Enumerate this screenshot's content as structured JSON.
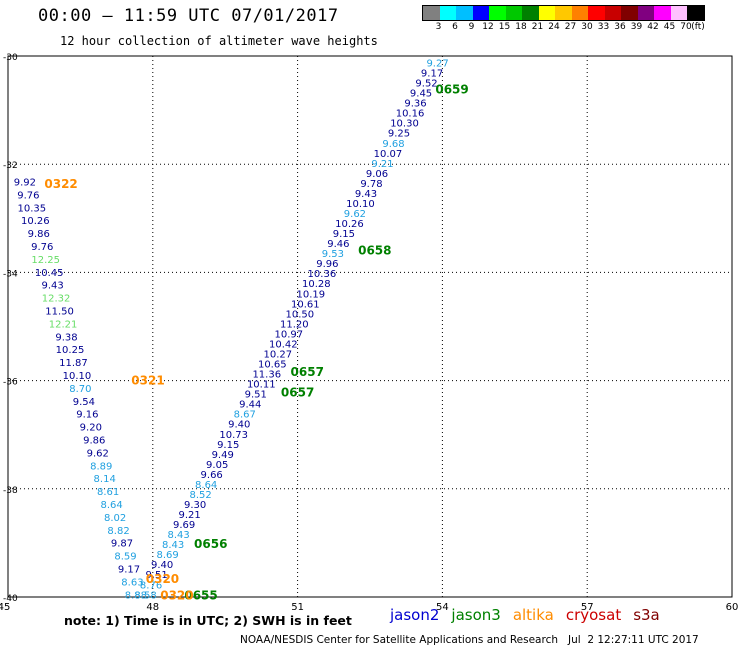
{
  "title": "00:00 – 11:59 UTC 07/01/2017",
  "subtitle": "12 hour collection of altimeter wave heights",
  "color_scale": {
    "unit_label": "(ft)",
    "labels": [
      "3",
      "6",
      "9",
      "12",
      "15",
      "18",
      "21",
      "24",
      "27",
      "30",
      "33",
      "36",
      "39",
      "42",
      "45",
      "70"
    ],
    "colors": [
      "#808080",
      "#00ffff",
      "#00bfff",
      "#0000ff",
      "#00ff00",
      "#00c800",
      "#008000",
      "#ffff00",
      "#ffc800",
      "#ff8000",
      "#ff0000",
      "#c80000",
      "#800000",
      "#800080",
      "#ff00ff",
      "#ffc0ff",
      "#000000"
    ]
  },
  "axes": {
    "lon_ticks": [
      "45",
      "48",
      "51",
      "54",
      "57",
      "60"
    ],
    "lat_ticks": [
      "-30",
      "-32",
      "-34",
      "-36",
      "-38",
      "-40"
    ],
    "lon_range": [
      45,
      60
    ],
    "lat_range": [
      -40,
      -30
    ]
  },
  "satellite_colors": {
    "jason2": "#000090",
    "jason3": "#008000",
    "altika": "#ff8c00",
    "cryosat": "#cc0000",
    "s3a": "#800000",
    "light_blue": "#20a0e0",
    "light_green": "#66dd66"
  },
  "tracks": [
    {
      "name": "west-track",
      "labels": [
        {
          "t": "9.92",
          "c": "jason2"
        },
        {
          "t": "9.76",
          "c": "jason2"
        },
        {
          "t": "10.35",
          "c": "jason2"
        },
        {
          "t": "10.26",
          "c": "jason2"
        },
        {
          "t": "9.86",
          "c": "jason2"
        },
        {
          "t": "9.76",
          "c": "jason2"
        },
        {
          "t": "12.25",
          "c": "light_green"
        },
        {
          "t": "10.45",
          "c": "jason2"
        },
        {
          "t": "9.43",
          "c": "jason2"
        },
        {
          "t": "12.32",
          "c": "light_green"
        },
        {
          "t": "11.50",
          "c": "jason2"
        },
        {
          "t": "12.21",
          "c": "light_green"
        },
        {
          "t": "9.38",
          "c": "jason2"
        },
        {
          "t": "10.25",
          "c": "jason2"
        },
        {
          "t": "11.87",
          "c": "jason2"
        },
        {
          "t": "10.10",
          "c": "jason2"
        },
        {
          "t": "8.70",
          "c": "light_blue"
        },
        {
          "t": "9.54",
          "c": "jason2"
        },
        {
          "t": "9.16",
          "c": "jason2"
        },
        {
          "t": "9.20",
          "c": "jason2"
        },
        {
          "t": "9.86",
          "c": "jason2"
        },
        {
          "t": "9.62",
          "c": "jason2"
        },
        {
          "t": "8.89",
          "c": "light_blue"
        },
        {
          "t": "8.14",
          "c": "light_blue"
        },
        {
          "t": "8.61",
          "c": "light_blue"
        },
        {
          "t": "8.64",
          "c": "light_blue"
        },
        {
          "t": "8.02",
          "c": "light_blue"
        },
        {
          "t": "8.82",
          "c": "light_blue"
        },
        {
          "t": "9.87",
          "c": "jason2"
        },
        {
          "t": "8.59",
          "c": "light_blue"
        },
        {
          "t": "9.17",
          "c": "jason2"
        },
        {
          "t": "8.63",
          "c": "light_blue"
        },
        {
          "t": "8.88",
          "c": "light_blue"
        }
      ]
    },
    {
      "name": "east-track",
      "labels": [
        {
          "t": "9.27",
          "c": "light_blue"
        },
        {
          "t": "9.17",
          "c": "jason2"
        },
        {
          "t": "9.52",
          "c": "jason2"
        },
        {
          "t": "9.45",
          "c": "jason2"
        },
        {
          "t": "9.36",
          "c": "jason2"
        },
        {
          "t": "10.16",
          "c": "jason2"
        },
        {
          "t": "10.30",
          "c": "jason2"
        },
        {
          "t": "9.25",
          "c": "jason2"
        },
        {
          "t": "9.68",
          "c": "light_blue"
        },
        {
          "t": "10.07",
          "c": "jason2"
        },
        {
          "t": "9.21",
          "c": "light_blue"
        },
        {
          "t": "9.06",
          "c": "jason2"
        },
        {
          "t": "9.78",
          "c": "jason2"
        },
        {
          "t": "9.43",
          "c": "jason2"
        },
        {
          "t": "10.10",
          "c": "jason2"
        },
        {
          "t": "9.62",
          "c": "light_blue"
        },
        {
          "t": "10.26",
          "c": "jason2"
        },
        {
          "t": "9.15",
          "c": "jason2"
        },
        {
          "t": "9.46",
          "c": "jason2"
        },
        {
          "t": "9.53",
          "c": "light_blue"
        },
        {
          "t": "9.96",
          "c": "jason2"
        },
        {
          "t": "10.36",
          "c": "jason2"
        },
        {
          "t": "10.28",
          "c": "jason2"
        },
        {
          "t": "10.19",
          "c": "jason2"
        },
        {
          "t": "10.61",
          "c": "jason2"
        },
        {
          "t": "10.50",
          "c": "jason2"
        },
        {
          "t": "11.20",
          "c": "jason2"
        },
        {
          "t": "10.97",
          "c": "jason2"
        },
        {
          "t": "10.42",
          "c": "jason2"
        },
        {
          "t": "10.27",
          "c": "jason2"
        },
        {
          "t": "10.65",
          "c": "jason2"
        },
        {
          "t": "11.36",
          "c": "jason2"
        },
        {
          "t": "10.11",
          "c": "jason2"
        },
        {
          "t": "9.51",
          "c": "jason2"
        },
        {
          "t": "9.44",
          "c": "jason2"
        },
        {
          "t": "8.67",
          "c": "light_blue"
        },
        {
          "t": "9.40",
          "c": "jason2"
        },
        {
          "t": "10.73",
          "c": "jason2"
        },
        {
          "t": "9.15",
          "c": "jason2"
        },
        {
          "t": "9.49",
          "c": "jason2"
        },
        {
          "t": "9.05",
          "c": "jason2"
        },
        {
          "t": "9.66",
          "c": "jason2"
        },
        {
          "t": "8.64",
          "c": "light_blue"
        },
        {
          "t": "8.52",
          "c": "light_blue"
        },
        {
          "t": "9.30",
          "c": "jason2"
        },
        {
          "t": "9.21",
          "c": "jason2"
        },
        {
          "t": "9.69",
          "c": "jason2"
        },
        {
          "t": "8.43",
          "c": "light_blue"
        },
        {
          "t": "8.43",
          "c": "light_blue"
        },
        {
          "t": "8.69",
          "c": "light_blue"
        },
        {
          "t": "9.40",
          "c": "jason2"
        },
        {
          "t": "9.51",
          "c": "jason2"
        },
        {
          "t": "8.76",
          "c": "light_blue"
        },
        {
          "t": "8.58",
          "c": "light_blue"
        }
      ]
    }
  ],
  "time_labels": [
    {
      "t": "0322",
      "c": "altika",
      "lon": 46.1,
      "lat": -32.35
    },
    {
      "t": "0321",
      "c": "altika",
      "lon": 47.9,
      "lat": -35.98
    },
    {
      "t": "0659",
      "c": "jason3",
      "lon": 54.2,
      "lat": -30.6
    },
    {
      "t": "0658",
      "c": "jason3",
      "lon": 52.6,
      "lat": -33.58
    },
    {
      "t": "0657",
      "c": "jason3",
      "lon": 51.2,
      "lat": -35.82
    },
    {
      "t": "0657",
      "c": "jason3",
      "lon": 51.0,
      "lat": -36.2
    },
    {
      "t": "0656",
      "c": "jason3",
      "lon": 49.2,
      "lat": -39.0
    },
    {
      "t": "0320",
      "c": "altika",
      "lon": 48.2,
      "lat": -39.65
    },
    {
      "t": "0655",
      "c": "jason3",
      "lon": 49.0,
      "lat": -39.95
    },
    {
      "t": "0320",
      "c": "altika",
      "lon": 48.5,
      "lat": -39.95
    }
  ],
  "note": "note: 1) Time is in UTC; 2) SWH is in feet",
  "sat_legend": [
    {
      "label": "jason2",
      "color": "#0000d0"
    },
    {
      "label": "jason3",
      "color": "#008000"
    },
    {
      "label": "altika",
      "color": "#ff8c00"
    },
    {
      "label": "cryosat",
      "color": "#cc0000"
    },
    {
      "label": "s3a",
      "color": "#800000"
    }
  ],
  "footer": "NOAA/NESDIS Center for Satellite Applications and Research   Jul  2 12:27:11 UTC 2017"
}
